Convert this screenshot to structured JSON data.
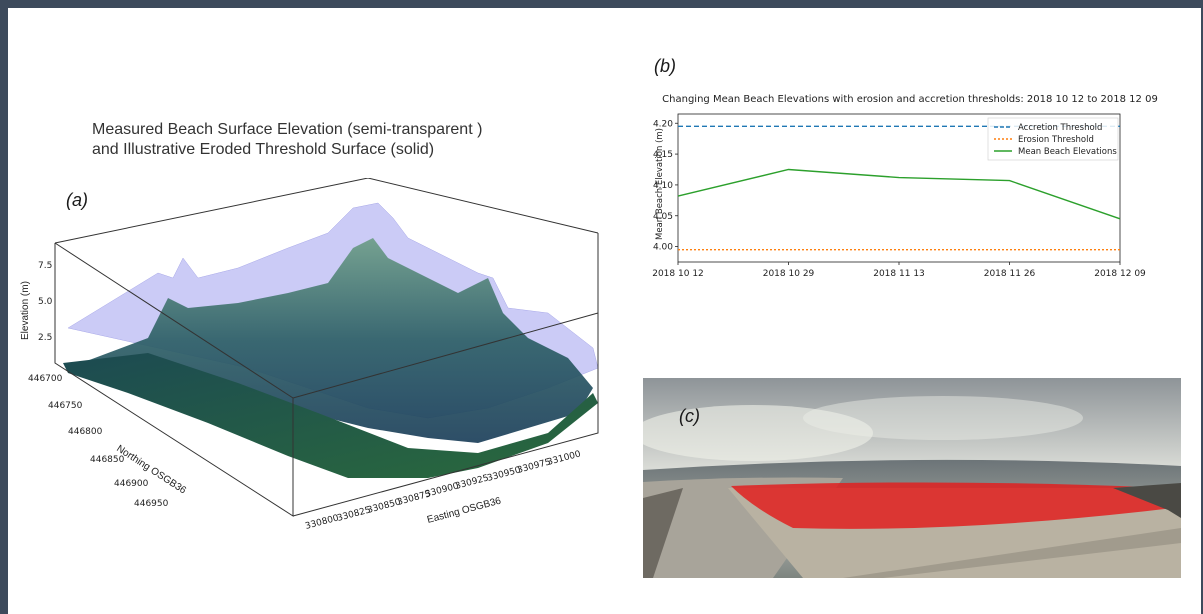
{
  "panels": {
    "a": "(a)",
    "b": "(b)",
    "c": "(c)"
  },
  "surface_plot": {
    "title_line1": "Measured Beach Surface Elevation (semi-transparent )",
    "title_line2": "and Illustrative Eroded Threshold Surface (solid)",
    "zlabel": "Elevation (m)",
    "ylabel": "Northing OSGB36",
    "xlabel": "Easting OSGB36",
    "z_ticks": [
      "2.5",
      "5.0",
      "7.5"
    ],
    "y_ticks": [
      "446700",
      "446750",
      "446800",
      "446850",
      "446900",
      "446950"
    ],
    "x_ticks": [
      "330800",
      "330825",
      "330850",
      "330875",
      "330900",
      "330925",
      "330950",
      "330975",
      "331000"
    ],
    "colors": {
      "measured": "#b9b9f3",
      "eroded": "#2f6b6a",
      "base": "#1f5c3b"
    }
  },
  "chart_data": {
    "type": "line",
    "title": "Changing Mean Beach Elevations with erosion and accretion thresholds: 2018 10 12 to 2018 12 09",
    "ylabel": "Mean Beach Elevation (m)",
    "categories": [
      "2018 10 12",
      "2018 10 29",
      "2018 11 13",
      "2018 11 26",
      "2018 12 09"
    ],
    "y_ticks": [
      "4.00",
      "4.05",
      "4.10",
      "4.15",
      "4.20"
    ],
    "ylim": [
      3.975,
      4.215
    ],
    "legend_position": "top-right",
    "series": [
      {
        "name": "Accretion Threshold",
        "values": [
          4.195,
          4.195,
          4.195,
          4.195,
          4.195
        ],
        "color": "#1f77b4",
        "style": "dashed"
      },
      {
        "name": "Erosion Threshold",
        "values": [
          3.995,
          3.995,
          3.995,
          3.995,
          3.995
        ],
        "color": "#ff7f0e",
        "style": "dotted"
      },
      {
        "name": "Mean Beach Elevations",
        "values": [
          4.082,
          4.125,
          4.112,
          4.107,
          4.045
        ],
        "color": "#2ca02c",
        "style": "solid"
      }
    ]
  },
  "photo": {
    "overlay_color": "#e02020"
  }
}
